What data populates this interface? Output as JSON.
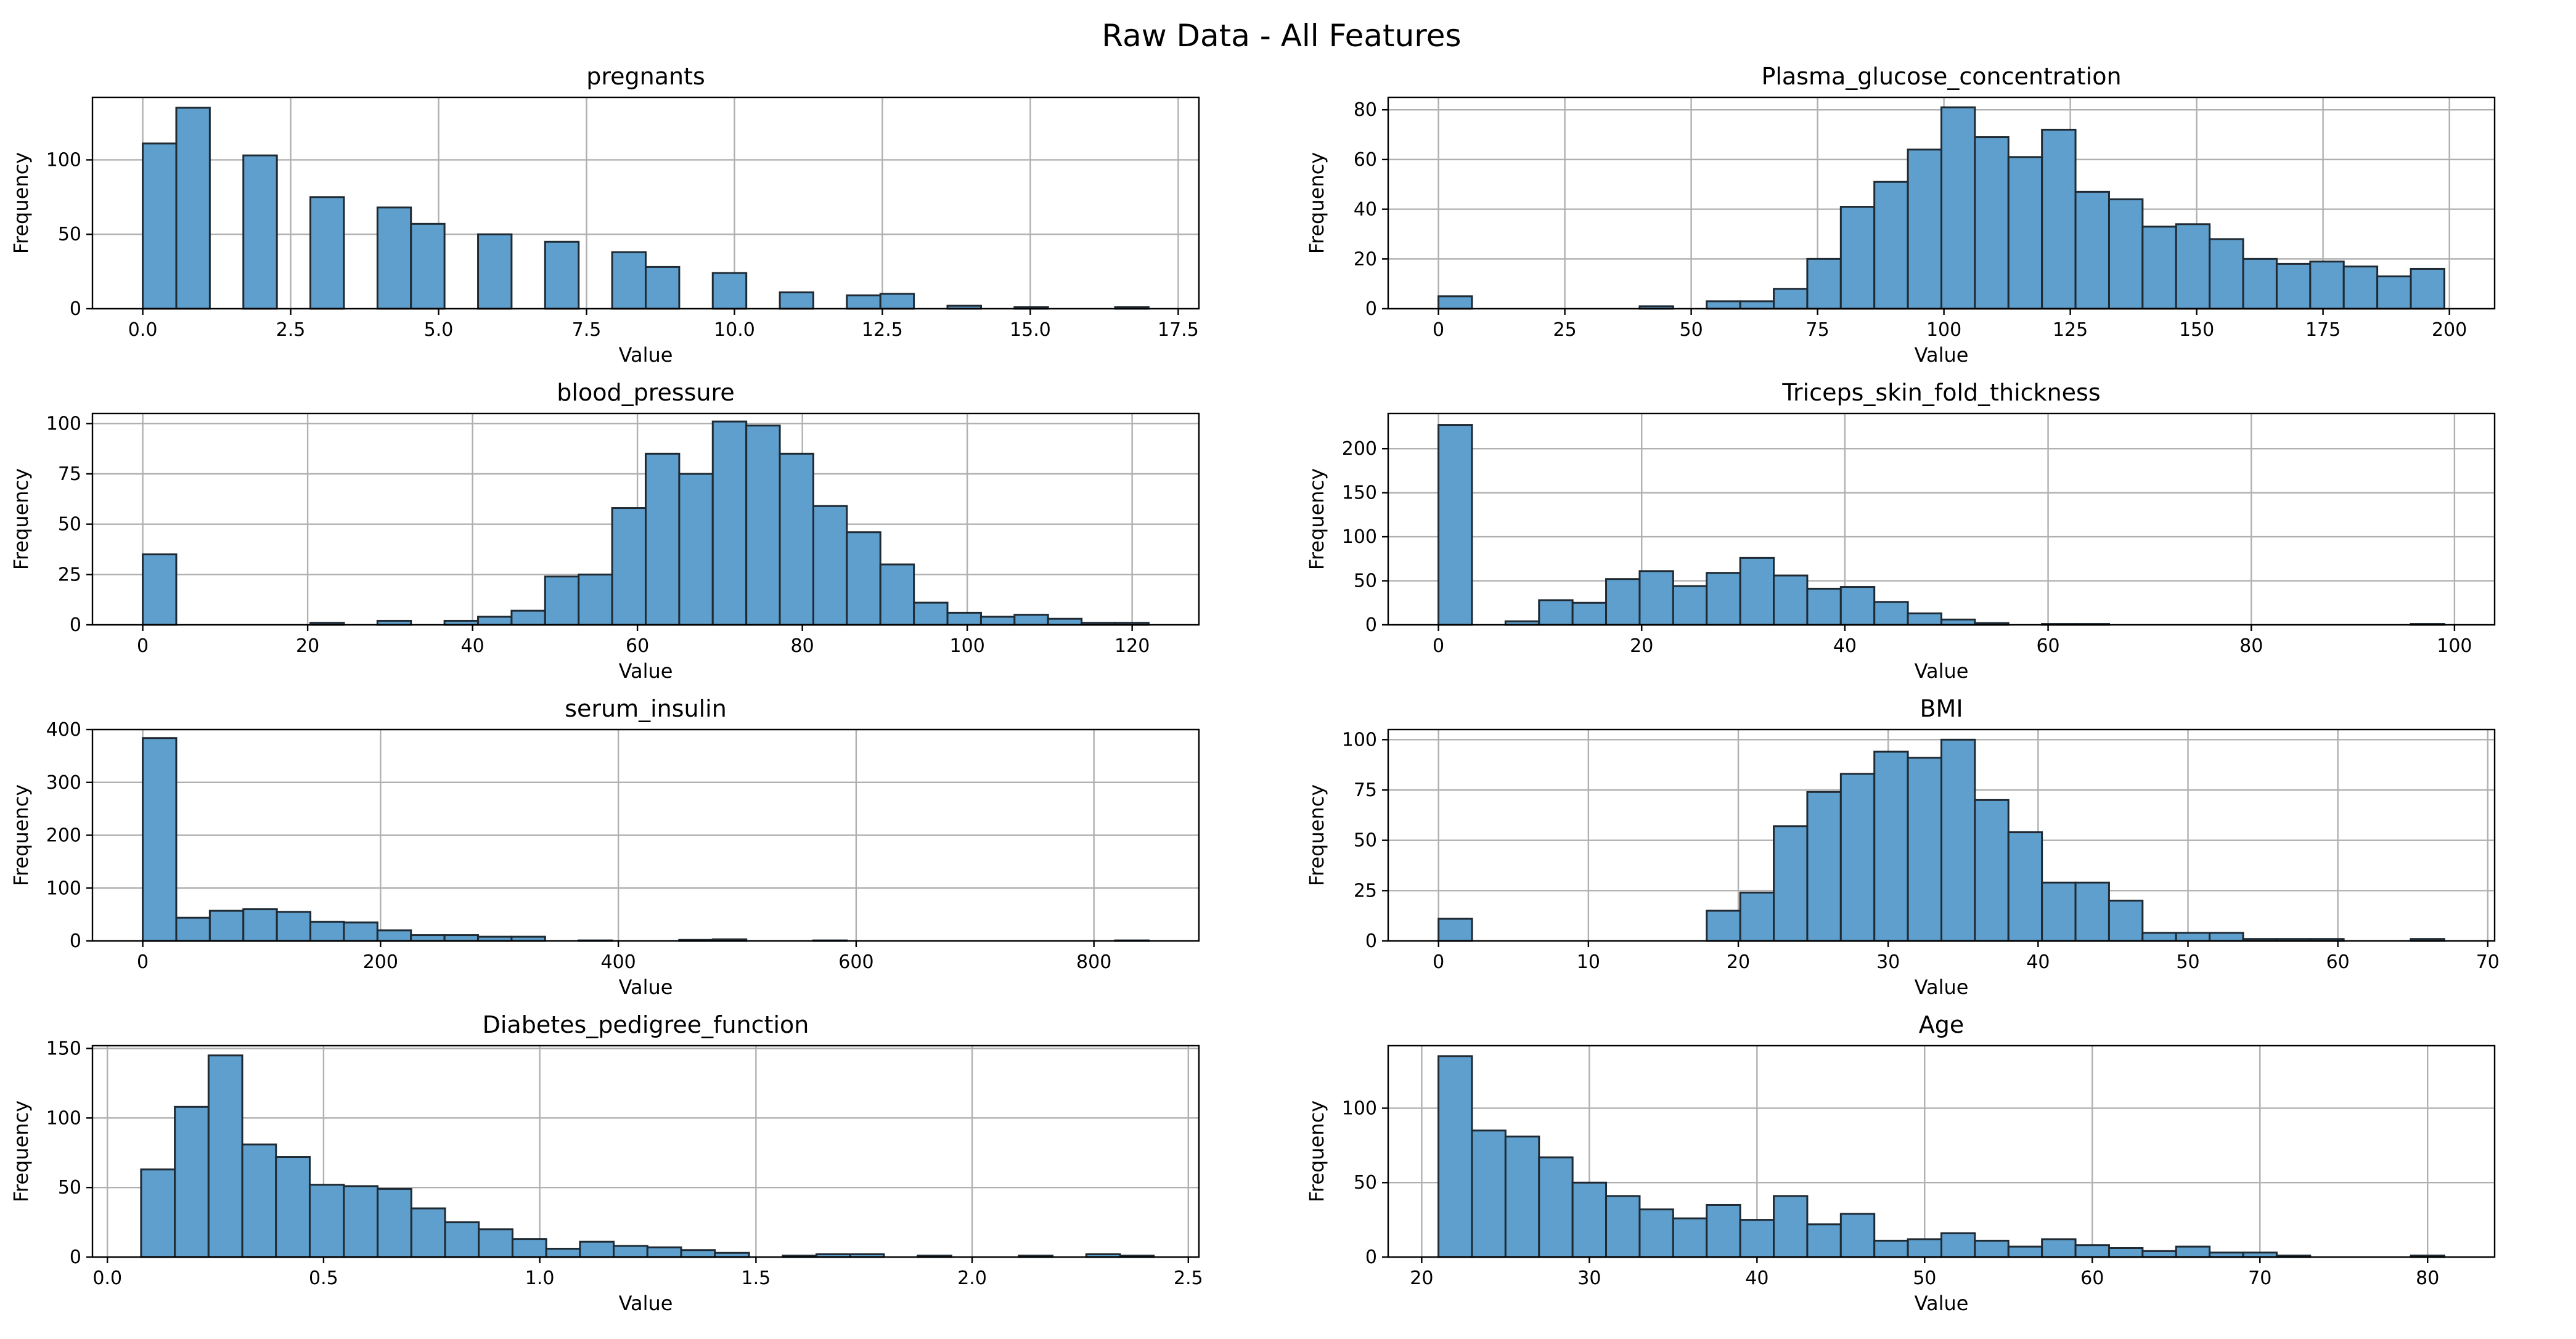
{
  "figure": {
    "title": "Raw Data - All Features",
    "bar_color": "#5f9fcd",
    "edge_color": "#1f2a33",
    "grid_color": "#b0b0b0"
  },
  "chart_data": [
    {
      "type": "bar",
      "title": "pregnants",
      "xlabel": "Value",
      "ylabel": "Frequency",
      "xlim": [
        -0.85,
        17.85
      ],
      "ylim": [
        0,
        142
      ],
      "xticks": [
        0,
        2.5,
        5,
        7.5,
        10,
        12.5,
        15,
        17.5
      ],
      "xtick_labels": [
        "0.0",
        "2.5",
        "5.0",
        "7.5",
        "10.0",
        "12.5",
        "15.0",
        "17.5"
      ],
      "yticks": [
        0,
        50,
        100
      ],
      "yticks_labels": [
        "0",
        "50",
        "100"
      ],
      "grid": true,
      "bin_edges": [
        0,
        0.567,
        1.133,
        1.7,
        2.267,
        2.833,
        3.4,
        3.967,
        4.533,
        5.1,
        5.667,
        6.233,
        6.8,
        7.367,
        7.933,
        8.5,
        9.067,
        9.633,
        10.2,
        10.767,
        11.333,
        11.9,
        12.467,
        13.033,
        13.6,
        14.167,
        14.733,
        15.3,
        15.867,
        16.433,
        17
      ],
      "counts": [
        111,
        135,
        0,
        103,
        0,
        75,
        0,
        68,
        57,
        0,
        50,
        0,
        45,
        0,
        38,
        28,
        0,
        24,
        0,
        11,
        0,
        9,
        10,
        0,
        2,
        0,
        1,
        0,
        0,
        1
      ]
    },
    {
      "type": "bar",
      "title": "Plasma_glucose_concentration",
      "xlabel": "Value",
      "ylabel": "Frequency",
      "xlim": [
        -9.95,
        208.95
      ],
      "ylim": [
        0,
        85
      ],
      "xticks": [
        0,
        25,
        50,
        75,
        100,
        125,
        150,
        175,
        200
      ],
      "xtick_labels": [
        "0",
        "25",
        "50",
        "75",
        "100",
        "125",
        "150",
        "175",
        "200"
      ],
      "yticks": [
        0,
        20,
        40,
        60,
        80
      ],
      "yticks_labels": [
        "0",
        "20",
        "40",
        "60",
        "80"
      ],
      "grid": true,
      "bin_edges": [
        0,
        6.633,
        13.267,
        19.9,
        26.533,
        33.167,
        39.8,
        46.433,
        53.067,
        59.7,
        66.333,
        72.967,
        79.6,
        86.233,
        92.867,
        99.5,
        106.133,
        112.767,
        119.4,
        126.033,
        132.667,
        139.3,
        145.933,
        152.567,
        159.2,
        165.833,
        172.467,
        179.1,
        185.733,
        192.367,
        199
      ],
      "counts": [
        5,
        0,
        0,
        0,
        0,
        0,
        1,
        0,
        3,
        3,
        8,
        20,
        41,
        51,
        64,
        81,
        69,
        61,
        72,
        47,
        44,
        33,
        34,
        28,
        20,
        18,
        19,
        17,
        13,
        16
      ]
    },
    {
      "type": "bar",
      "title": "blood_pressure",
      "xlabel": "Value",
      "ylabel": "Frequency",
      "xlim": [
        -6.1,
        128.1
      ],
      "ylim": [
        0,
        105
      ],
      "xticks": [
        0,
        20,
        40,
        60,
        80,
        100,
        120
      ],
      "xtick_labels": [
        "0",
        "20",
        "40",
        "60",
        "80",
        "100",
        "120"
      ],
      "yticks": [
        0,
        25,
        50,
        75,
        100
      ],
      "yticks_labels": [
        "0",
        "25",
        "50",
        "75",
        "100"
      ],
      "grid": true,
      "bin_edges": [
        0,
        4.067,
        8.133,
        12.2,
        16.267,
        20.333,
        24.4,
        28.467,
        32.533,
        36.6,
        40.667,
        44.733,
        48.8,
        52.867,
        56.933,
        61,
        65.067,
        69.133,
        73.2,
        77.267,
        81.333,
        85.4,
        89.467,
        93.533,
        97.6,
        101.667,
        105.733,
        109.8,
        113.867,
        117.933,
        122
      ],
      "counts": [
        35,
        0,
        0,
        0,
        0,
        1,
        0,
        2,
        0,
        2,
        4,
        7,
        24,
        25,
        58,
        85,
        75,
        101,
        99,
        85,
        59,
        46,
        30,
        11,
        6,
        4,
        5,
        3,
        1,
        1
      ]
    },
    {
      "type": "bar",
      "title": "Triceps_skin_fold_thickness",
      "xlabel": "Value",
      "ylabel": "Frequency",
      "xlim": [
        -4.95,
        103.95
      ],
      "ylim": [
        0,
        240
      ],
      "xticks": [
        0,
        20,
        40,
        60,
        80,
        100
      ],
      "xtick_labels": [
        "0",
        "20",
        "40",
        "60",
        "80",
        "100"
      ],
      "yticks": [
        0,
        50,
        100,
        150,
        200
      ],
      "yticks_labels": [
        "0",
        "50",
        "100",
        "150",
        "200"
      ],
      "grid": true,
      "bin_edges": [
        0,
        3.3,
        6.6,
        9.9,
        13.2,
        16.5,
        19.8,
        23.1,
        26.4,
        29.7,
        33,
        36.3,
        39.6,
        42.9,
        46.2,
        49.5,
        52.8,
        56.1,
        59.4,
        62.7,
        66,
        69.3,
        72.6,
        75.9,
        79.2,
        82.5,
        85.8,
        89.1,
        92.4,
        95.7,
        99
      ],
      "counts": [
        227,
        0,
        4,
        28,
        25,
        52,
        61,
        44,
        59,
        76,
        56,
        41,
        43,
        26,
        13,
        6,
        2,
        0,
        1,
        1,
        0,
        0,
        0,
        0,
        0,
        0,
        0,
        0,
        0,
        1
      ]
    },
    {
      "type": "bar",
      "title": "serum_insulin",
      "xlabel": "Value",
      "ylabel": "Frequency",
      "xlim": [
        -42.3,
        888.3
      ],
      "ylim": [
        0,
        400
      ],
      "xticks": [
        0,
        200,
        400,
        600,
        800
      ],
      "xtick_labels": [
        "0",
        "200",
        "400",
        "600",
        "800"
      ],
      "yticks": [
        0,
        100,
        200,
        300,
        400
      ],
      "yticks_labels": [
        "0",
        "100",
        "200",
        "300",
        "400"
      ],
      "grid": true,
      "bin_edges": [
        0,
        28.2,
        56.4,
        84.6,
        112.8,
        141,
        169.2,
        197.4,
        225.6,
        253.8,
        282,
        310.2,
        338.4,
        366.6,
        394.8,
        423,
        451.2,
        479.4,
        507.6,
        535.8,
        564,
        592.2,
        620.4,
        648.6,
        676.8,
        705,
        733.2,
        761.4,
        789.6,
        817.8,
        846
      ],
      "counts": [
        384,
        44,
        57,
        60,
        55,
        36,
        35,
        20,
        11,
        11,
        8,
        8,
        0,
        1,
        0,
        0,
        2,
        3,
        0,
        0,
        1,
        0,
        0,
        0,
        0,
        0,
        0,
        0,
        0,
        1
      ]
    },
    {
      "type": "bar",
      "title": "BMI",
      "xlabel": "Value",
      "ylabel": "Frequency",
      "xlim": [
        -3.36,
        70.46
      ],
      "ylim": [
        0,
        105
      ],
      "xticks": [
        0,
        10,
        20,
        30,
        40,
        50,
        60,
        70
      ],
      "xtick_labels": [
        "0",
        "10",
        "20",
        "30",
        "40",
        "50",
        "60",
        "70"
      ],
      "yticks": [
        0,
        25,
        50,
        75,
        100
      ],
      "yticks_labels": [
        "0",
        "25",
        "50",
        "75",
        "100"
      ],
      "grid": true,
      "bin_edges": [
        0,
        2.237,
        4.473,
        6.71,
        8.947,
        11.183,
        13.42,
        15.657,
        17.893,
        20.13,
        22.367,
        24.603,
        26.84,
        29.077,
        31.313,
        33.55,
        35.787,
        38.023,
        40.26,
        42.497,
        44.733,
        46.97,
        49.207,
        51.443,
        53.68,
        55.917,
        58.153,
        60.39,
        62.627,
        64.863,
        67.1
      ],
      "counts": [
        11,
        0,
        0,
        0,
        0,
        0,
        0,
        0,
        15,
        24,
        57,
        74,
        83,
        94,
        91,
        100,
        70,
        54,
        29,
        29,
        20,
        4,
        4,
        4,
        1,
        1,
        1,
        0,
        0,
        1
      ]
    },
    {
      "type": "bar",
      "title": "Diabetes_pedigree_function",
      "xlabel": "Value",
      "ylabel": "Frequency",
      "xlim": [
        -0.0345,
        2.5245
      ],
      "ylim": [
        0,
        152
      ],
      "xticks": [
        0,
        0.5,
        1,
        1.5,
        2,
        2.5
      ],
      "xtick_labels": [
        "0.0",
        "0.5",
        "1.0",
        "1.5",
        "2.0",
        "2.5"
      ],
      "yticks": [
        0,
        50,
        100,
        150
      ],
      "yticks_labels": [
        "0",
        "50",
        "100",
        "150"
      ],
      "grid": true,
      "bin_edges": [
        0.078,
        0.156,
        0.234,
        0.312,
        0.39,
        0.468,
        0.547,
        0.625,
        0.703,
        0.781,
        0.859,
        0.937,
        1.015,
        1.093,
        1.171,
        1.249,
        1.327,
        1.405,
        1.484,
        1.562,
        1.64,
        1.718,
        1.796,
        1.874,
        1.952,
        2.03,
        2.108,
        2.186,
        2.264,
        2.342,
        2.42
      ],
      "counts": [
        63,
        108,
        145,
        81,
        72,
        52,
        51,
        49,
        35,
        25,
        20,
        13,
        6,
        11,
        8,
        7,
        5,
        3,
        0,
        1,
        2,
        2,
        0,
        1,
        0,
        0,
        1,
        0,
        2,
        1
      ]
    },
    {
      "type": "bar",
      "title": "Age",
      "xlabel": "Value",
      "ylabel": "Frequency",
      "xlim": [
        18,
        84
      ],
      "ylim": [
        0,
        142
      ],
      "xticks": [
        20,
        30,
        40,
        50,
        60,
        70,
        80
      ],
      "xtick_labels": [
        "20",
        "30",
        "40",
        "50",
        "60",
        "70",
        "80"
      ],
      "yticks": [
        0,
        50,
        100
      ],
      "yticks_labels": [
        "0",
        "50",
        "100"
      ],
      "grid": true,
      "bin_edges": [
        21,
        23,
        25,
        27,
        29,
        31,
        33,
        35,
        37,
        39,
        41,
        43,
        45,
        47,
        49,
        51,
        53,
        55,
        57,
        59,
        61,
        63,
        65,
        67,
        69,
        71,
        73,
        75,
        77,
        79,
        81
      ],
      "counts": [
        135,
        85,
        81,
        67,
        50,
        41,
        32,
        26,
        35,
        25,
        41,
        22,
        29,
        11,
        12,
        16,
        11,
        7,
        12,
        8,
        6,
        4,
        7,
        3,
        3,
        1,
        0,
        0,
        0,
        1
      ]
    }
  ]
}
